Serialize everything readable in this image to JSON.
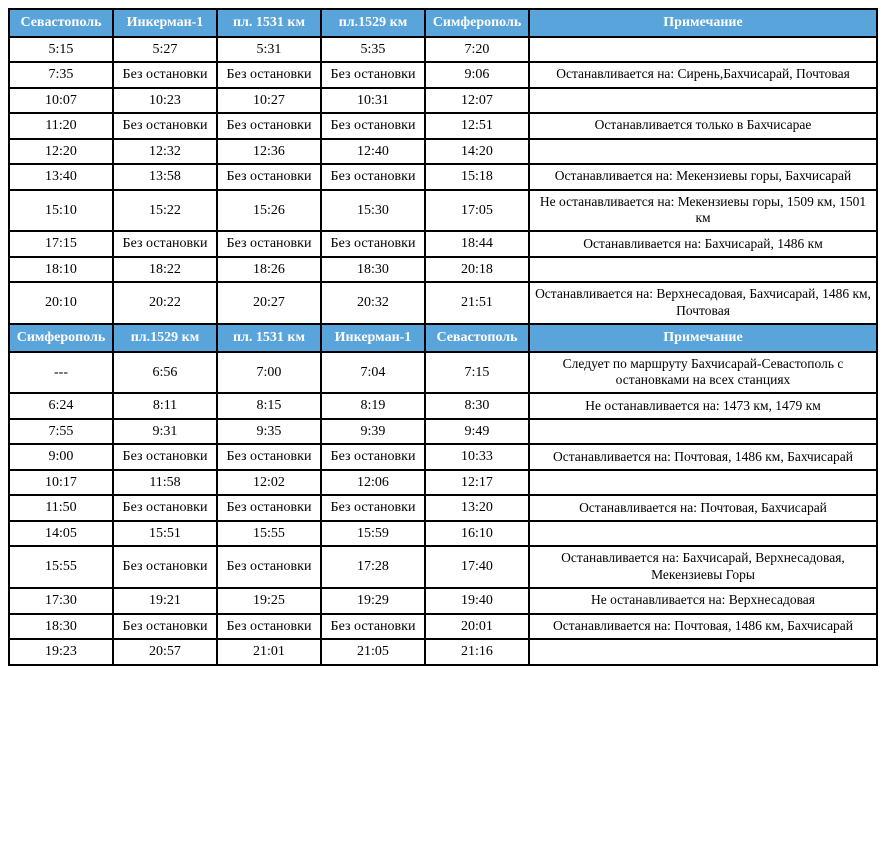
{
  "colors": {
    "header_bg": "#5aa4dc",
    "header_text": "#ffffff",
    "border": "#000000",
    "bg": "#ffffff"
  },
  "table1": {
    "headers": [
      "Севастополь",
      "Инкерман-1",
      "пл. 1531 км",
      "пл.1529 км",
      "Симферополь",
      "Примечание"
    ],
    "rows": [
      [
        "5:15",
        "5:27",
        "5:31",
        "5:35",
        "7:20",
        ""
      ],
      [
        "7:35",
        "Без остановки",
        "Без остановки",
        "Без остановки",
        "9:06",
        "Останавливается на: Сирень,Бахчисарай, Почтовая"
      ],
      [
        "10:07",
        "10:23",
        "10:27",
        "10:31",
        "12:07",
        ""
      ],
      [
        "11:20",
        "Без остановки",
        "Без остановки",
        "Без остановки",
        "12:51",
        "Останавливается только в Бахчисарае"
      ],
      [
        "12:20",
        "12:32",
        "12:36",
        "12:40",
        "14:20",
        ""
      ],
      [
        "13:40",
        "13:58",
        "Без остановки",
        "Без остановки",
        "15:18",
        "Останавливается на: Мекензиевы горы, Бахчисарай"
      ],
      [
        "15:10",
        "15:22",
        "15:26",
        "15:30",
        "17:05",
        "Не останавливается на: Мекензиевы горы, 1509 км, 1501 км"
      ],
      [
        "17:15",
        "Без остановки",
        "Без остановки",
        "Без остановки",
        "18:44",
        "Останавливается на: Бахчисарай, 1486 км"
      ],
      [
        "18:10",
        "18:22",
        "18:26",
        "18:30",
        "20:18",
        ""
      ],
      [
        "20:10",
        "20:22",
        "20:27",
        "20:32",
        "21:51",
        "Останавливается на: Верхнесадовая, Бахчисарай, 1486 км, Почтовая"
      ]
    ]
  },
  "table2": {
    "headers": [
      "Симферополь",
      "пл.1529 км",
      "пл. 1531 км",
      "Инкерман-1",
      "Севастополь",
      "Примечание"
    ],
    "rows": [
      [
        "---",
        "6:56",
        "7:00",
        "7:04",
        "7:15",
        "Следует по маршруту Бахчисарай-Севастополь с остановками на всех станциях"
      ],
      [
        "6:24",
        "8:11",
        "8:15",
        "8:19",
        "8:30",
        "Не останавливается на: 1473 км, 1479 км"
      ],
      [
        "7:55",
        "9:31",
        "9:35",
        "9:39",
        "9:49",
        ""
      ],
      [
        "9:00",
        "Без остановки",
        "Без остановки",
        "Без остановки",
        "10:33",
        "Останавливается на: Почтовая, 1486 км, Бахчисарай"
      ],
      [
        "10:17",
        "11:58",
        "12:02",
        "12:06",
        "12:17",
        ""
      ],
      [
        "11:50",
        "Без остановки",
        "Без остановки",
        "Без остановки",
        "13:20",
        "Останавливается на: Почтовая, Бахчисарай"
      ],
      [
        "14:05",
        "15:51",
        "15:55",
        "15:59",
        "16:10",
        ""
      ],
      [
        "15:55",
        "Без остановки",
        "Без остановки",
        "17:28",
        "17:40",
        "Останавливается на: Бахчисарай, Верхнесадовая, Мекензиевы Горы"
      ],
      [
        "17:30",
        "19:21",
        "19:25",
        "19:29",
        "19:40",
        "Не останавливается на: Верхнесадовая"
      ],
      [
        "18:30",
        "Без остановки",
        "Без остановки",
        "Без остановки",
        "20:01",
        "Останавливается на: Почтовая, 1486 км, Бахчисарай"
      ],
      [
        "19:23",
        "20:57",
        "21:01",
        "21:05",
        "21:16",
        ""
      ]
    ]
  }
}
